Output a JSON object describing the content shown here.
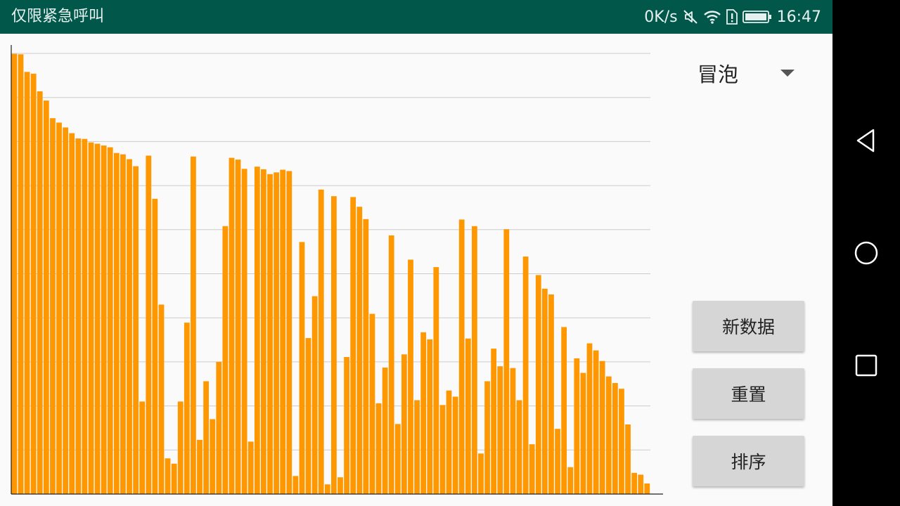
{
  "status_bar": {
    "carrier_text": "仅限紧急呼叫",
    "net_speed": "0K/s",
    "time": "16:47",
    "icons": [
      "mute-icon",
      "wifi-icon",
      "sim-alert-icon",
      "battery-icon"
    ]
  },
  "controls": {
    "algorithm_select": {
      "selected": "冒泡"
    },
    "new_data_label": "新数据",
    "reset_label": "重置",
    "sort_label": "排序"
  },
  "nav_bar": {
    "icons": [
      "back-icon",
      "home-icon",
      "recent-apps-icon"
    ]
  },
  "colors": {
    "bar": "#FF9800",
    "status_bar": "#01574A",
    "button": "#D6D6D6",
    "grid": "#CCCCCC"
  },
  "chart_data": {
    "type": "bar",
    "title": "",
    "xlabel": "",
    "ylabel": "",
    "ylim": [
      0,
      100
    ],
    "grid": true,
    "gridline_count": 10,
    "values": [
      99.9,
      99.8,
      95.8,
      95.4,
      91.4,
      89.3,
      85.3,
      84.3,
      83.2,
      81.9,
      80.7,
      80.6,
      79.8,
      79.5,
      79.1,
      78.7,
      77.4,
      77.1,
      76.0,
      74.4,
      21.0,
      76.8,
      67.0,
      43.0,
      8.1,
      6.9,
      21.0,
      38.9,
      76.6,
      12.3,
      25.6,
      17.0,
      30.0,
      60.8,
      76.3,
      75.9,
      73.8,
      11.9,
      74.3,
      73.7,
      72.6,
      73.0,
      73.6,
      73.3,
      4.1,
      57.2,
      35.4,
      44.9,
      69.1,
      2.2,
      67.6,
      3.8,
      31.1,
      67.4,
      65.2,
      62.4,
      40.9,
      20.6,
      28.7,
      58.7,
      15.9,
      31.7,
      53.2,
      21.3,
      36.7,
      35.1,
      51.5,
      20.2,
      23.5,
      22.1,
      62.3,
      35.3,
      60.8,
      9.2,
      25.6,
      33.0,
      29.0,
      60.1,
      28.6,
      21.3,
      53.9,
      11.3,
      49.7,
      46.6,
      45.3,
      14.8,
      37.9,
      6.1,
      30.8,
      27.5,
      34.2,
      32.6,
      30.2,
      26.7,
      25.2,
      23.9,
      15.8,
      4.8,
      4.4,
      2.4
    ]
  }
}
